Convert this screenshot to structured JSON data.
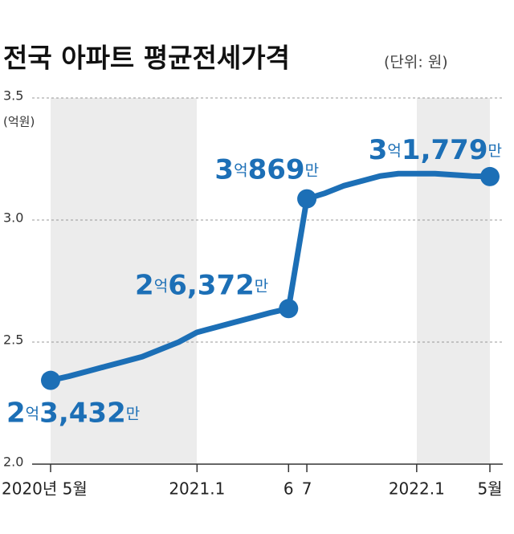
{
  "chart_data": {
    "type": "line",
    "title": "전국 아파트 평균전세가격",
    "subtitle": "(단위: 원)",
    "y_label": "(억원)",
    "categories": [
      "2020년 5월",
      null,
      null,
      null,
      null,
      null,
      null,
      null,
      "2021.1",
      null,
      null,
      null,
      null,
      "6",
      "7",
      null,
      null,
      null,
      null,
      null,
      "2022.1",
      null,
      null,
      null,
      "5월"
    ],
    "series": [
      {
        "name": "평균전세가격",
        "color": "#1c6fb6",
        "values": [
          2.3432,
          2.36,
          2.38,
          2.4,
          2.42,
          2.44,
          2.47,
          2.5,
          2.54,
          2.56,
          2.58,
          2.6,
          2.62,
          2.6372,
          3.0869,
          3.11,
          3.14,
          3.16,
          3.18,
          3.19,
          3.19,
          3.19,
          3.185,
          3.18,
          3.1779
        ],
        "value_labels": [
          "2억3,432만",
          null,
          null,
          null,
          null,
          null,
          null,
          null,
          null,
          null,
          null,
          null,
          null,
          "2억6,372만",
          "3억869만",
          null,
          null,
          null,
          null,
          null,
          null,
          null,
          null,
          null,
          "3억1,779만"
        ]
      }
    ],
    "ylim": [
      2,
      3.5
    ],
    "yticks": [
      {
        "value": 2,
        "label": "2.0"
      },
      2.5,
      {
        "value": 3,
        "label": "3.0"
      },
      3.5
    ],
    "grid": true
  }
}
